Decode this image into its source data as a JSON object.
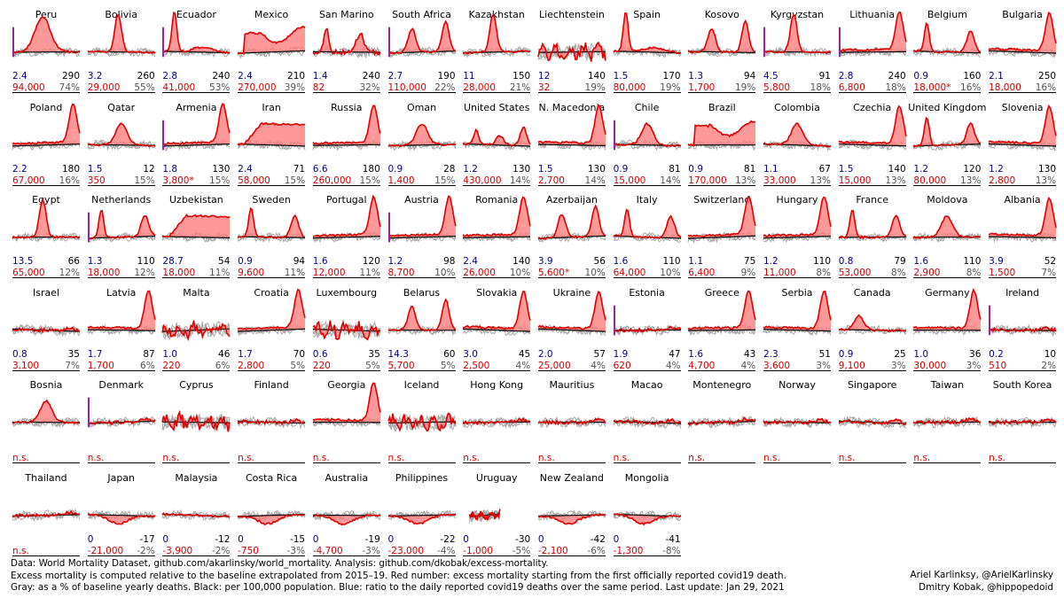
{
  "chart_data": {
    "type": "small-multiples-line",
    "description_fields": [
      "country",
      "ratio",
      "per_100k",
      "excess",
      "pct"
    ],
    "panels": [
      {
        "country": "Peru",
        "ratio": "2.4",
        "per_100k": "290",
        "excess": "94,000",
        "pct": "74%",
        "shape": "hump-big",
        "start_mark": true
      },
      {
        "country": "Bolivia",
        "ratio": "3.2",
        "per_100k": "260",
        "excess": "29,000",
        "pct": "55%",
        "shape": "spike-mid",
        "start_mark": false
      },
      {
        "country": "Ecuador",
        "ratio": "2.8",
        "per_100k": "240",
        "excess": "41,000",
        "pct": "53%",
        "shape": "spike-early",
        "start_mark": true
      },
      {
        "country": "Mexico",
        "ratio": "2.4",
        "per_100k": "210",
        "excess": "270,000",
        "pct": "39%",
        "shape": "plateau",
        "start_mark": false
      },
      {
        "country": "San Marino",
        "ratio": "1.4",
        "per_100k": "240",
        "excess": "82",
        "pct": "32%",
        "shape": "noisy-peaks",
        "start_mark": false
      },
      {
        "country": "South Africa",
        "ratio": "2.7",
        "per_100k": "190",
        "excess": "110,000",
        "pct": "22%",
        "shape": "two-waves",
        "start_mark": true
      },
      {
        "country": "Kazakhstan",
        "ratio": "11",
        "per_100k": "150",
        "excess": "28,000",
        "pct": "21%",
        "shape": "spike-mid",
        "start_mark": false
      },
      {
        "country": "Liechtenstein",
        "ratio": "12",
        "per_100k": "140",
        "excess": "32",
        "pct": "19%",
        "shape": "very-noisy",
        "start_mark": false
      },
      {
        "country": "Spain",
        "ratio": "1.5",
        "per_100k": "170",
        "excess": "80,000",
        "pct": "19%",
        "shape": "spike-early",
        "start_mark": false
      },
      {
        "country": "Kosovo",
        "ratio": "1.3",
        "per_100k": "94",
        "excess": "1,700",
        "pct": "19%",
        "shape": "two-waves",
        "start_mark": false
      },
      {
        "country": "Kyrgyzstan",
        "ratio": "4.5",
        "per_100k": "91",
        "excess": "5,800",
        "pct": "18%",
        "shape": "spike-mid",
        "start_mark": true
      },
      {
        "country": "Lithuania",
        "ratio": "2.8",
        "per_100k": "240",
        "excess": "6,800",
        "pct": "18%",
        "shape": "late-rise",
        "start_mark": true
      },
      {
        "country": "Belgium",
        "ratio": "0.9",
        "per_100k": "160",
        "excess": "18,000*",
        "pct": "16%",
        "shape": "two-peaks",
        "start_mark": false
      },
      {
        "country": "Bulgaria",
        "ratio": "2.1",
        "per_100k": "250",
        "excess": "18,000",
        "pct": "16%",
        "shape": "late-rise",
        "start_mark": false
      },
      {
        "country": "Poland",
        "ratio": "2.2",
        "per_100k": "180",
        "excess": "67,000",
        "pct": "16%",
        "shape": "late-rise",
        "start_mark": false
      },
      {
        "country": "Qatar",
        "ratio": "1.5",
        "per_100k": "12",
        "excess": "350",
        "pct": "15%",
        "shape": "hump-mid",
        "start_mark": false
      },
      {
        "country": "Armenia",
        "ratio": "1.8",
        "per_100k": "130",
        "excess": "3,800*",
        "pct": "15%",
        "shape": "late-rise",
        "start_mark": true
      },
      {
        "country": "Iran",
        "ratio": "2.4",
        "per_100k": "71",
        "excess": "58,000",
        "pct": "15%",
        "shape": "wedge",
        "start_mark": false
      },
      {
        "country": "Russia",
        "ratio": "6.6",
        "per_100k": "180",
        "excess": "260,000",
        "pct": "15%",
        "shape": "late-rise",
        "start_mark": false
      },
      {
        "country": "Oman",
        "ratio": "0.9",
        "per_100k": "28",
        "excess": "1,400",
        "pct": "15%",
        "shape": "hump-mid",
        "start_mark": false
      },
      {
        "country": "United States",
        "ratio": "1.2",
        "per_100k": "130",
        "excess": "430,000",
        "pct": "14%",
        "shape": "three-waves",
        "start_mark": false
      },
      {
        "country": "N. Macedonia",
        "ratio": "1.5",
        "per_100k": "130",
        "excess": "2,700",
        "pct": "14%",
        "shape": "late-rise",
        "start_mark": false
      },
      {
        "country": "Chile",
        "ratio": "0.9",
        "per_100k": "81",
        "excess": "15,000",
        "pct": "14%",
        "shape": "hump-mid",
        "start_mark": true
      },
      {
        "country": "Brazil",
        "ratio": "0.9",
        "per_100k": "81",
        "excess": "170,000",
        "pct": "13%",
        "shape": "plateau",
        "start_mark": false
      },
      {
        "country": "Colombia",
        "ratio": "1.1",
        "per_100k": "67",
        "excess": "33,000",
        "pct": "13%",
        "shape": "hump-mid",
        "start_mark": false
      },
      {
        "country": "Czechia",
        "ratio": "1.5",
        "per_100k": "140",
        "excess": "15,000",
        "pct": "13%",
        "shape": "late-rise",
        "start_mark": false
      },
      {
        "country": "United Kingdom",
        "ratio": "1.2",
        "per_100k": "120",
        "excess": "80,000",
        "pct": "13%",
        "shape": "two-peaks",
        "start_mark": false
      },
      {
        "country": "Slovenia",
        "ratio": "1.2",
        "per_100k": "130",
        "excess": "2,800",
        "pct": "13%",
        "shape": "late-rise",
        "start_mark": false
      },
      {
        "country": "Egypt",
        "ratio": "13.5",
        "per_100k": "66",
        "excess": "65,000",
        "pct": "12%",
        "shape": "spike-mid",
        "start_mark": false
      },
      {
        "country": "Netherlands",
        "ratio": "1.3",
        "per_100k": "110",
        "excess": "18,000",
        "pct": "12%",
        "shape": "two-peaks",
        "start_mark": true
      },
      {
        "country": "Uzbekistan",
        "ratio": "28.7",
        "per_100k": "54",
        "excess": "18,000",
        "pct": "11%",
        "shape": "wedge",
        "start_mark": false
      },
      {
        "country": "Sweden",
        "ratio": "0.9",
        "per_100k": "94",
        "excess": "9,600",
        "pct": "11%",
        "shape": "two-peaks",
        "start_mark": false
      },
      {
        "country": "Portugal",
        "ratio": "1.6",
        "per_100k": "120",
        "excess": "12,000",
        "pct": "11%",
        "shape": "late-rise",
        "start_mark": false
      },
      {
        "country": "Austria",
        "ratio": "1.2",
        "per_100k": "98",
        "excess": "8,700",
        "pct": "10%",
        "shape": "late-rise",
        "start_mark": true
      },
      {
        "country": "Romania",
        "ratio": "2.4",
        "per_100k": "140",
        "excess": "26,000",
        "pct": "10%",
        "shape": "late-rise",
        "start_mark": false
      },
      {
        "country": "Azerbaijan",
        "ratio": "3.9",
        "per_100k": "56",
        "excess": "5,600*",
        "pct": "10%",
        "shape": "two-waves",
        "start_mark": false
      },
      {
        "country": "Italy",
        "ratio": "1.6",
        "per_100k": "110",
        "excess": "64,000",
        "pct": "10%",
        "shape": "two-peaks",
        "start_mark": false
      },
      {
        "country": "Switzerland",
        "ratio": "1.1",
        "per_100k": "75",
        "excess": "6,400",
        "pct": "9%",
        "shape": "late-rise",
        "start_mark": false
      },
      {
        "country": "Hungary",
        "ratio": "1.2",
        "per_100k": "110",
        "excess": "11,000",
        "pct": "8%",
        "shape": "late-rise",
        "start_mark": false
      },
      {
        "country": "France",
        "ratio": "0.8",
        "per_100k": "79",
        "excess": "53,000",
        "pct": "8%",
        "shape": "two-peaks",
        "start_mark": false
      },
      {
        "country": "Moldova",
        "ratio": "1.6",
        "per_100k": "110",
        "excess": "2,900",
        "pct": "8%",
        "shape": "hump-mid",
        "start_mark": false
      },
      {
        "country": "Albania",
        "ratio": "3.9",
        "per_100k": "52",
        "excess": "1,500",
        "pct": "7%",
        "shape": "late-rise",
        "start_mark": false
      },
      {
        "country": "Israel",
        "ratio": "0.8",
        "per_100k": "35",
        "excess": "3,100",
        "pct": "7%",
        "shape": "noisy-flat",
        "start_mark": false
      },
      {
        "country": "Latvia",
        "ratio": "1.7",
        "per_100k": "87",
        "excess": "1,700",
        "pct": "6%",
        "shape": "late-rise",
        "start_mark": false
      },
      {
        "country": "Malta",
        "ratio": "1.0",
        "per_100k": "46",
        "excess": "220",
        "pct": "6%",
        "shape": "very-noisy",
        "start_mark": false
      },
      {
        "country": "Croatia",
        "ratio": "1.7",
        "per_100k": "70",
        "excess": "2,800",
        "pct": "5%",
        "shape": "late-rise",
        "start_mark": false
      },
      {
        "country": "Luxembourg",
        "ratio": "0.6",
        "per_100k": "35",
        "excess": "220",
        "pct": "5%",
        "shape": "very-noisy",
        "start_mark": false
      },
      {
        "country": "Belarus",
        "ratio": "14.3",
        "per_100k": "60",
        "excess": "5,700",
        "pct": "5%",
        "shape": "two-waves",
        "start_mark": false
      },
      {
        "country": "Slovakia",
        "ratio": "3.0",
        "per_100k": "45",
        "excess": "2,500",
        "pct": "4%",
        "shape": "late-rise",
        "start_mark": false
      },
      {
        "country": "Ukraine",
        "ratio": "2.0",
        "per_100k": "57",
        "excess": "25,000",
        "pct": "4%",
        "shape": "late-rise",
        "start_mark": false
      },
      {
        "country": "Estonia",
        "ratio": "1.9",
        "per_100k": "47",
        "excess": "620",
        "pct": "4%",
        "shape": "noisy-flat",
        "start_mark": true
      },
      {
        "country": "Greece",
        "ratio": "1.6",
        "per_100k": "43",
        "excess": "4,700",
        "pct": "4%",
        "shape": "late-rise",
        "start_mark": false
      },
      {
        "country": "Serbia",
        "ratio": "2.3",
        "per_100k": "51",
        "excess": "3,600",
        "pct": "3%",
        "shape": "late-rise",
        "start_mark": false
      },
      {
        "country": "Canada",
        "ratio": "0.9",
        "per_100k": "25",
        "excess": "9,100",
        "pct": "3%",
        "shape": "hump-early",
        "start_mark": false
      },
      {
        "country": "Germany",
        "ratio": "1.0",
        "per_100k": "36",
        "excess": "30,000",
        "pct": "3%",
        "shape": "late-rise",
        "start_mark": false
      },
      {
        "country": "Ireland",
        "ratio": "0.2",
        "per_100k": "10",
        "excess": "510",
        "pct": "2%",
        "shape": "noisy-flat",
        "start_mark": true
      },
      {
        "country": "Bosnia",
        "ratio": "",
        "per_100k": "",
        "excess": "n.s.",
        "pct": "",
        "shape": "hump-mid",
        "start_mark": false
      },
      {
        "country": "Denmark",
        "ratio": "",
        "per_100k": "",
        "excess": "n.s.",
        "pct": "",
        "shape": "noisy-flat",
        "start_mark": true
      },
      {
        "country": "Cyprus",
        "ratio": "",
        "per_100k": "",
        "excess": "n.s.",
        "pct": "",
        "shape": "very-noisy",
        "start_mark": false
      },
      {
        "country": "Finland",
        "ratio": "",
        "per_100k": "",
        "excess": "n.s.",
        "pct": "",
        "shape": "noisy-flat",
        "start_mark": false
      },
      {
        "country": "Georgia",
        "ratio": "",
        "per_100k": "",
        "excess": "n.s.",
        "pct": "",
        "shape": "late-rise",
        "start_mark": false
      },
      {
        "country": "Iceland",
        "ratio": "",
        "per_100k": "",
        "excess": "n.s.",
        "pct": "",
        "shape": "very-noisy",
        "start_mark": false
      },
      {
        "country": "Hong Kong",
        "ratio": "",
        "per_100k": "",
        "excess": "n.s.",
        "pct": "",
        "shape": "noisy-flat",
        "start_mark": false
      },
      {
        "country": "Mauritius",
        "ratio": "",
        "per_100k": "",
        "excess": "n.s.",
        "pct": "",
        "shape": "noisy-flat",
        "start_mark": false
      },
      {
        "country": "Macao",
        "ratio": "",
        "per_100k": "",
        "excess": "n.s.",
        "pct": "",
        "shape": "noisy-flat",
        "start_mark": false
      },
      {
        "country": "Montenegro",
        "ratio": "",
        "per_100k": "",
        "excess": "n.s.",
        "pct": "",
        "shape": "noisy-flat",
        "start_mark": false
      },
      {
        "country": "Norway",
        "ratio": "",
        "per_100k": "",
        "excess": "n.s.",
        "pct": "",
        "shape": "noisy-flat",
        "start_mark": false
      },
      {
        "country": "Singapore",
        "ratio": "",
        "per_100k": "",
        "excess": "n.s.",
        "pct": "",
        "shape": "noisy-flat",
        "start_mark": false
      },
      {
        "country": "Taiwan",
        "ratio": "",
        "per_100k": "",
        "excess": "n.s.",
        "pct": "",
        "shape": "noisy-flat",
        "start_mark": false
      },
      {
        "country": "South Korea",
        "ratio": "",
        "per_100k": "",
        "excess": "n.s.",
        "pct": "",
        "shape": "noisy-flat",
        "start_mark": false
      },
      {
        "country": "Thailand",
        "ratio": "",
        "per_100k": "",
        "excess": "n.s.",
        "pct": "",
        "shape": "noisy-flat",
        "start_mark": false
      },
      {
        "country": "Japan",
        "ratio": "0",
        "per_100k": "-17",
        "excess": "-21,000",
        "pct": "-2%",
        "shape": "dip",
        "start_mark": false
      },
      {
        "country": "Malaysia",
        "ratio": "0",
        "per_100k": "-12",
        "excess": "-3,900",
        "pct": "-2%",
        "shape": "flat-neg",
        "start_mark": false
      },
      {
        "country": "Costa Rica",
        "ratio": "0",
        "per_100k": "-15",
        "excess": "-750",
        "pct": "-3%",
        "shape": "dip",
        "start_mark": false
      },
      {
        "country": "Australia",
        "ratio": "0",
        "per_100k": "-19",
        "excess": "-4,700",
        "pct": "-3%",
        "shape": "dip",
        "start_mark": false
      },
      {
        "country": "Philippines",
        "ratio": "0",
        "per_100k": "-22",
        "excess": "-23,000",
        "pct": "-4%",
        "shape": "dip",
        "start_mark": false
      },
      {
        "country": "Uruguay",
        "ratio": "0",
        "per_100k": "-30",
        "excess": "-1,000",
        "pct": "-5%",
        "shape": "short-noisy",
        "start_mark": false
      },
      {
        "country": "New Zealand",
        "ratio": "0",
        "per_100k": "-42",
        "excess": "-2,100",
        "pct": "-6%",
        "shape": "dip",
        "start_mark": false
      },
      {
        "country": "Mongolia",
        "ratio": "0",
        "per_100k": "-41",
        "excess": "-1,300",
        "pct": "-8%",
        "shape": "dip",
        "start_mark": false
      }
    ]
  },
  "footer": {
    "line1": "Data: World Mortality Dataset, github.com/akarlinsky/world_mortality. Analysis: github.com/dkobak/excess-mortality.",
    "line2": "Excess mortality is computed relative to the baseline extrapolated from 2015–19. Red number: excess mortality starting from the first officially reported covid19 death.",
    "line3": "Gray: as a % of baseline yearly deaths. Black: per 100,000 population. Blue: ratio to the daily reported covid19 deaths over the same period. Last update: Jan 29, 2021"
  },
  "credits": {
    "line1": "Ariel Karlinksy, @ArielKarlinsky",
    "line2": "Dmitry Kobak, @hippopedoid"
  },
  "colors": {
    "current": "#e00000",
    "fill": "#ff8080",
    "baseline": "#000000",
    "past": "#a8a8a8",
    "ratio": "#00008b",
    "pct": "#555555",
    "mark": "#a020a0"
  }
}
